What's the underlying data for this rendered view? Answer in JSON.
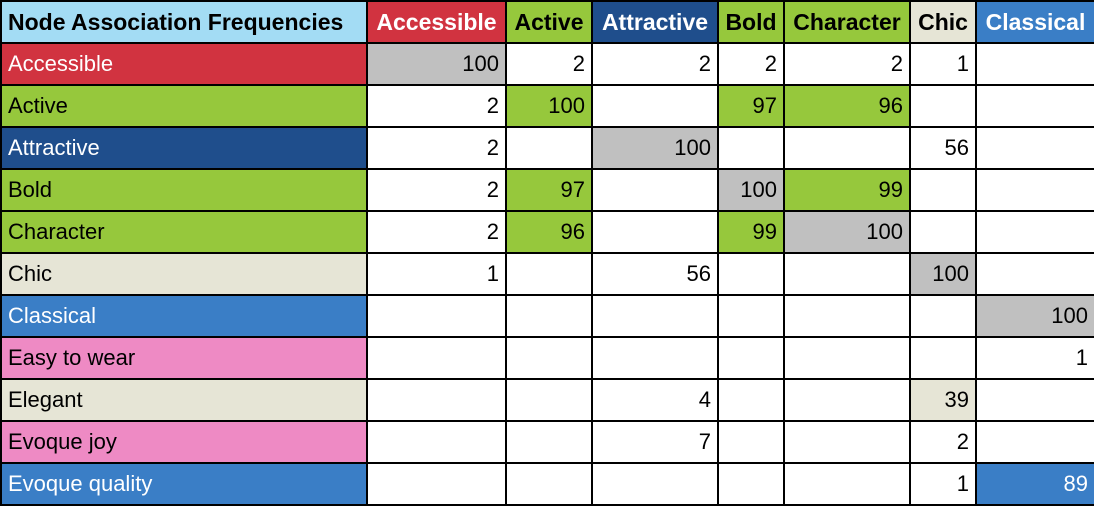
{
  "colors": {
    "red": "#d13340",
    "green": "#96c83c",
    "navy": "#1f4e8c",
    "beige": "#e6e5d6",
    "blue": "#3a7ec6",
    "pink": "#ee8ac4",
    "diag": "#c0c0c0",
    "corner": "#a3dcf4"
  },
  "chart_data": {
    "type": "table",
    "title": "Node Association Frequencies",
    "columns": [
      {
        "label": "Accessible",
        "bg": "red",
        "fg": "#ffffff"
      },
      {
        "label": "Active",
        "bg": "green",
        "fg": "#000000"
      },
      {
        "label": "Attractive",
        "bg": "navy",
        "fg": "#ffffff"
      },
      {
        "label": "Bold",
        "bg": "green",
        "fg": "#000000"
      },
      {
        "label": "Character",
        "bg": "green",
        "fg": "#000000"
      },
      {
        "label": "Chic",
        "bg": "beige",
        "fg": "#000000"
      },
      {
        "label": "Classical",
        "bg": "blue",
        "fg": "#ffffff"
      }
    ],
    "rows": [
      {
        "label": "Accessible",
        "bg": "red",
        "fg": "#ffffff",
        "values": [
          100,
          2,
          2,
          2,
          2,
          1,
          null
        ]
      },
      {
        "label": "Active",
        "bg": "green",
        "fg": "#000000",
        "values": [
          2,
          100,
          null,
          97,
          96,
          null,
          null
        ]
      },
      {
        "label": "Attractive",
        "bg": "navy",
        "fg": "#ffffff",
        "values": [
          2,
          null,
          100,
          null,
          null,
          56,
          null
        ]
      },
      {
        "label": "Bold",
        "bg": "green",
        "fg": "#000000",
        "values": [
          2,
          97,
          null,
          100,
          99,
          null,
          null
        ]
      },
      {
        "label": "Character",
        "bg": "green",
        "fg": "#000000",
        "values": [
          2,
          96,
          null,
          99,
          100,
          null,
          null
        ]
      },
      {
        "label": "Chic",
        "bg": "beige",
        "fg": "#000000",
        "values": [
          1,
          null,
          56,
          null,
          null,
          100,
          null
        ]
      },
      {
        "label": "Classical",
        "bg": "blue",
        "fg": "#ffffff",
        "values": [
          null,
          null,
          null,
          null,
          null,
          null,
          100
        ]
      },
      {
        "label": "Easy to wear",
        "bg": "pink",
        "fg": "#000000",
        "values": [
          null,
          null,
          null,
          null,
          null,
          null,
          1
        ]
      },
      {
        "label": "Elegant",
        "bg": "beige",
        "fg": "#000000",
        "values": [
          null,
          null,
          4,
          null,
          null,
          39,
          null
        ]
      },
      {
        "label": "Evoque joy",
        "bg": "pink",
        "fg": "#000000",
        "values": [
          null,
          null,
          7,
          null,
          null,
          2,
          null
        ]
      },
      {
        "label": "Evoque quality",
        "bg": "blue",
        "fg": "#ffffff",
        "values": [
          null,
          null,
          null,
          null,
          null,
          1,
          89
        ]
      }
    ],
    "highlights": {
      "diagonal": "diag",
      "cells": [
        {
          "row": 1,
          "col": 1,
          "bg": "green"
        },
        {
          "row": 1,
          "col": 3,
          "bg": "green"
        },
        {
          "row": 1,
          "col": 4,
          "bg": "green"
        },
        {
          "row": 3,
          "col": 1,
          "bg": "green"
        },
        {
          "row": 3,
          "col": 4,
          "bg": "green"
        },
        {
          "row": 4,
          "col": 1,
          "bg": "green"
        },
        {
          "row": 4,
          "col": 3,
          "bg": "green"
        },
        {
          "row": 8,
          "col": 5,
          "bg": "beige"
        },
        {
          "row": 10,
          "col": 6,
          "bg": "blue",
          "fg": "#ffffff"
        }
      ]
    }
  }
}
